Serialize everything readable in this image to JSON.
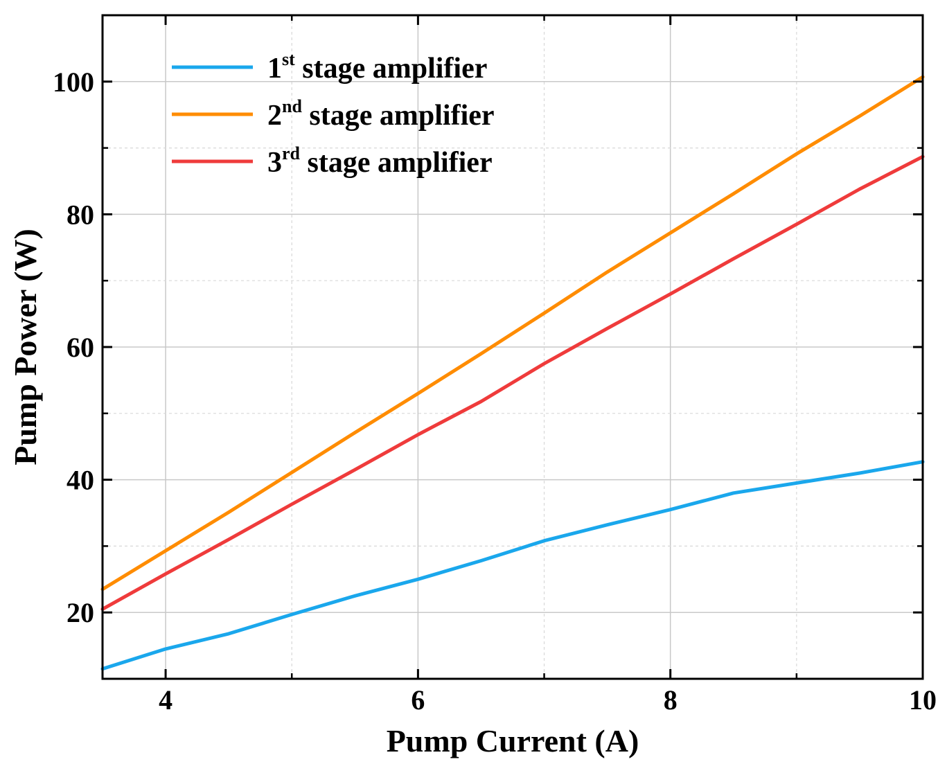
{
  "chart_data": {
    "type": "line",
    "title": "",
    "xlabel": "Pump Current (A)",
    "ylabel": "Pump Power (W)",
    "xlim": [
      3.5,
      10
    ],
    "ylim": [
      10,
      110
    ],
    "xticks": [
      4,
      6,
      8,
      10
    ],
    "yticks": [
      20,
      40,
      60,
      80,
      100
    ],
    "xtick_labels": [
      "4",
      "6",
      "8",
      "10"
    ],
    "ytick_labels": [
      "20",
      "40",
      "60",
      "80",
      "100"
    ],
    "grid": true,
    "legend_position": "top-left",
    "x": [
      3.5,
      4,
      4.5,
      5,
      5.5,
      6,
      6.5,
      7,
      7.5,
      8,
      8.5,
      9,
      9.5,
      10
    ],
    "series": [
      {
        "name": "1st stage amplifier",
        "legend_main": "1",
        "legend_sup": "st",
        "legend_rest": " stage amplifier",
        "color": "#1aa7ec",
        "values": [
          11.5,
          14.5,
          16.8,
          19.7,
          22.5,
          25.0,
          27.8,
          30.8,
          33.2,
          35.5,
          38.0,
          39.5,
          41.0,
          42.7
        ]
      },
      {
        "name": "2nd stage amplifier",
        "legend_main": "2",
        "legend_sup": "nd",
        "legend_rest": " stage amplifier",
        "color": "#ff8c00",
        "values": [
          23.5,
          29.3,
          35.1,
          41.1,
          47.1,
          53.0,
          59.0,
          65.1,
          71.3,
          77.2,
          83.1,
          89.1,
          94.8,
          100.7
        ]
      },
      {
        "name": "3rd stage amplifier",
        "legend_main": "3",
        "legend_sup": "rd",
        "legend_rest": " stage amplifier",
        "color": "#ef3b3b",
        "values": [
          20.5,
          25.8,
          31.0,
          36.3,
          41.5,
          46.8,
          51.8,
          57.5,
          62.8,
          68.0,
          73.3,
          78.5,
          83.8,
          88.7
        ]
      }
    ]
  }
}
